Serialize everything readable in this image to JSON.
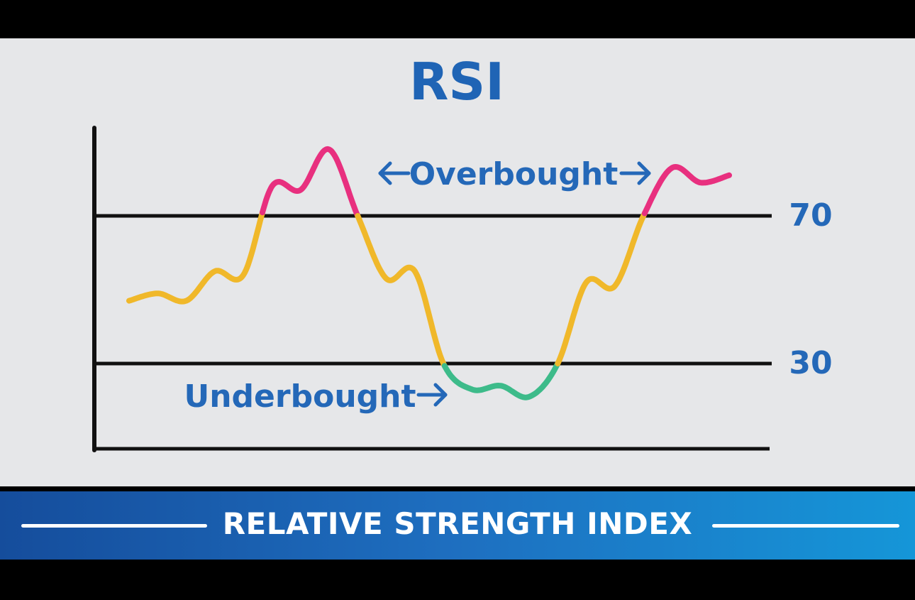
{
  "chart_data": {
    "type": "line",
    "title": "RSI",
    "subtitle": "RELATIVE STRENGTH INDEX",
    "reference_lines": [
      {
        "value": 70,
        "label": "70"
      },
      {
        "value": 30,
        "label": "30"
      }
    ],
    "annotations": {
      "overbought": "Overbought",
      "underbought": "Underbought"
    },
    "grid": false,
    "series": [
      {
        "values": [
          47,
          49,
          47,
          55,
          54,
          78,
          77,
          88,
          70,
          53,
          55,
          30,
          23,
          24,
          21,
          30,
          52,
          51,
          70,
          83,
          79,
          81
        ]
      }
    ],
    "colors": {
      "overbought": "#e8307f",
      "neutral": "#f0b82a",
      "underbought": "#3dbb8a",
      "text": "#1f64b5"
    }
  },
  "banner": {
    "text": "RELATIVE STRENGTH INDEX"
  },
  "icons": {
    "left_arrow": "left-arrow-icon",
    "right_arrow": "right-arrow-icon"
  }
}
